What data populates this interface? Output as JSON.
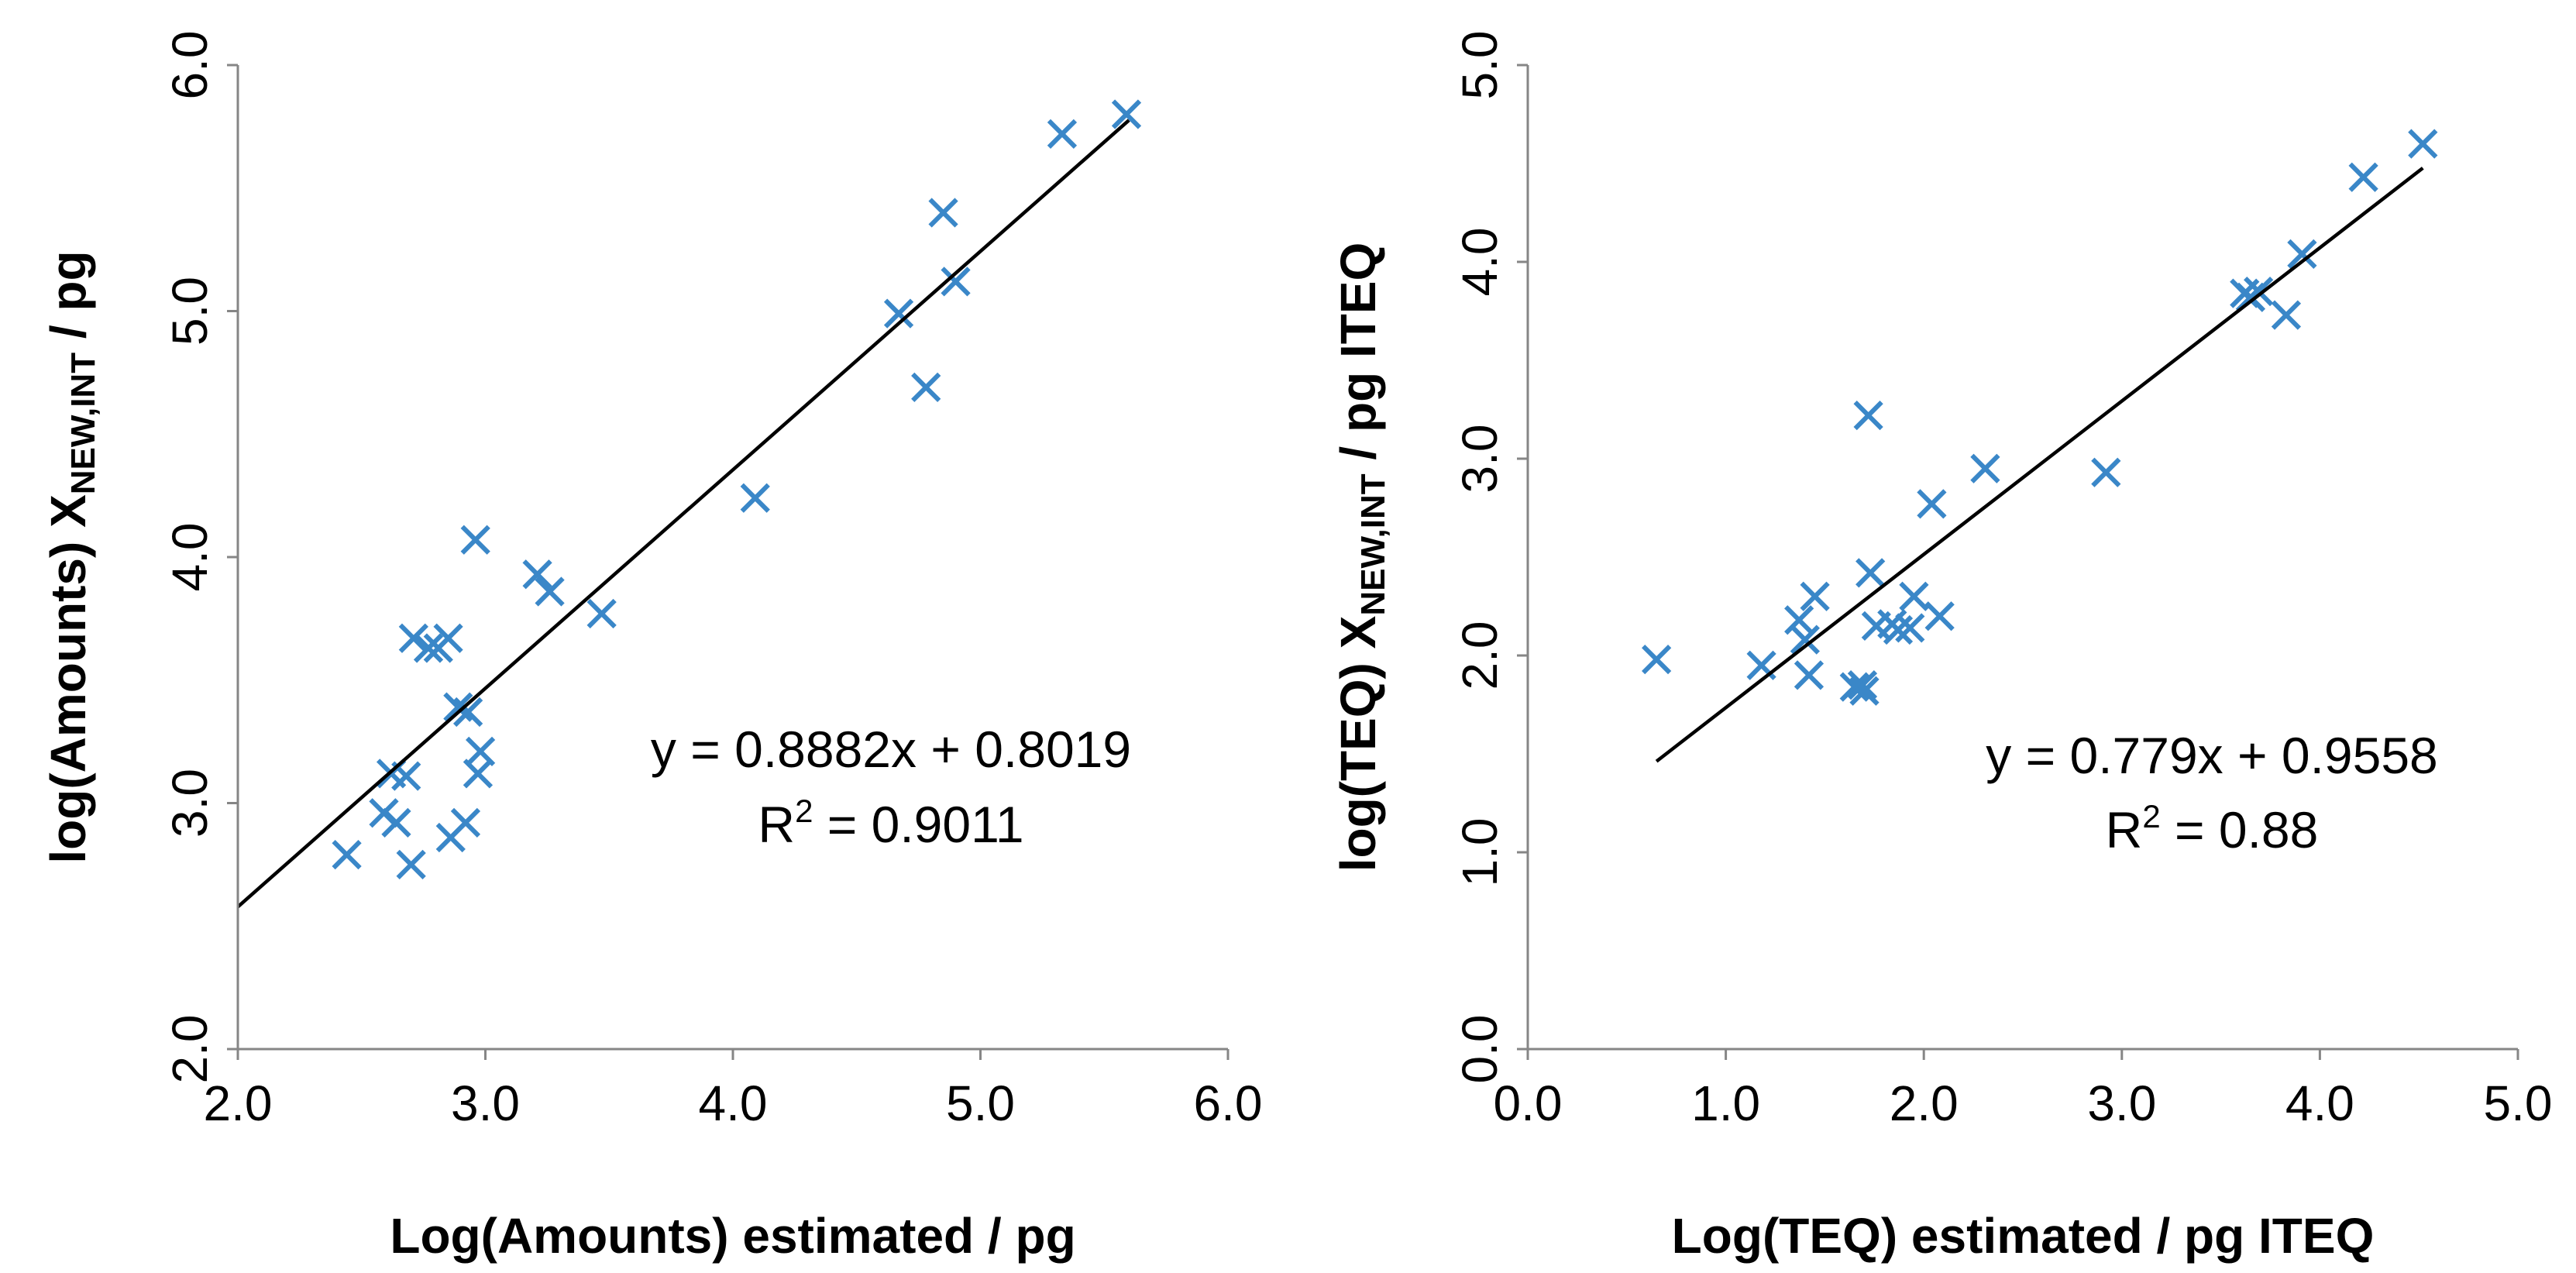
{
  "chart_data": [
    {
      "type": "scatter",
      "title": "",
      "xlabel": "Log(Amounts) estimated / pg",
      "ylabel": {
        "prefix": "log(Amounts) X",
        "subscript": "NEW,INT",
        "suffix": " / pg"
      },
      "xlim": [
        2.0,
        6.0
      ],
      "ylim": [
        2.0,
        6.0
      ],
      "xticks": [
        "2.0",
        "3.0",
        "4.0",
        "5.0",
        "6.0"
      ],
      "yticks": [
        "2.0",
        "3.0",
        "4.0",
        "5.0",
        "6.0"
      ],
      "marker_color": "#3a87c8",
      "points": [
        [
          2.44,
          2.79
        ],
        [
          2.59,
          2.96
        ],
        [
          2.62,
          3.12
        ],
        [
          2.64,
          2.92
        ],
        [
          2.68,
          3.11
        ],
        [
          2.7,
          2.75
        ],
        [
          2.71,
          3.67
        ],
        [
          2.77,
          3.63
        ],
        [
          2.81,
          3.63
        ],
        [
          2.85,
          3.67
        ],
        [
          2.86,
          2.86
        ],
        [
          2.89,
          3.39
        ],
        [
          2.92,
          2.92
        ],
        [
          2.93,
          3.37
        ],
        [
          2.96,
          4.07
        ],
        [
          2.97,
          3.12
        ],
        [
          2.98,
          3.21
        ],
        [
          3.21,
          3.93
        ],
        [
          3.26,
          3.86
        ],
        [
          3.47,
          3.77
        ],
        [
          4.09,
          4.24
        ],
        [
          4.67,
          4.99
        ],
        [
          4.78,
          4.69
        ],
        [
          4.85,
          5.4
        ],
        [
          4.9,
          5.12
        ],
        [
          5.33,
          5.72
        ],
        [
          5.59,
          5.8
        ]
      ],
      "trendline": {
        "slope": 0.8882,
        "intercept": 0.8019,
        "x_range": [
          2.0,
          5.6
        ]
      },
      "equation": "y = 0.8882x + 0.8019",
      "r2_prefix": "R",
      "r2_sup": "2",
      "r2_value": " = 0.9011"
    },
    {
      "type": "scatter",
      "title": "",
      "xlabel": "Log(TEQ) estimated / pg ITEQ",
      "ylabel": {
        "prefix": "log(TEQ) X",
        "subscript": "NEW,INT",
        "suffix": " / pg ITEQ"
      },
      "xlim": [
        0.0,
        5.0
      ],
      "ylim": [
        0.0,
        5.0
      ],
      "xticks": [
        "0.0",
        "1.0",
        "2.0",
        "3.0",
        "4.0",
        "5.0"
      ],
      "yticks": [
        "0.0",
        "1.0",
        "2.0",
        "3.0",
        "4.0",
        "5.0"
      ],
      "marker_color": "#3a87c8",
      "points": [
        [
          0.65,
          1.98
        ],
        [
          1.18,
          1.95
        ],
        [
          1.37,
          2.18
        ],
        [
          1.4,
          2.08
        ],
        [
          1.42,
          1.9
        ],
        [
          1.45,
          2.3
        ],
        [
          1.65,
          1.84
        ],
        [
          1.69,
          1.85
        ],
        [
          1.7,
          1.82
        ],
        [
          1.72,
          3.22
        ],
        [
          1.73,
          2.42
        ],
        [
          1.76,
          2.15
        ],
        [
          1.84,
          2.16
        ],
        [
          1.87,
          2.13
        ],
        [
          1.93,
          2.14
        ],
        [
          1.95,
          2.3
        ],
        [
          2.04,
          2.77
        ],
        [
          2.08,
          2.2
        ],
        [
          2.31,
          2.95
        ],
        [
          2.92,
          2.93
        ],
        [
          3.62,
          3.84
        ],
        [
          3.65,
          3.82
        ],
        [
          3.69,
          3.85
        ],
        [
          3.83,
          3.73
        ],
        [
          3.91,
          4.04
        ],
        [
          4.22,
          4.43
        ],
        [
          4.52,
          4.6
        ]
      ],
      "trendline": {
        "slope": 0.779,
        "intercept": 0.9558,
        "x_range": [
          0.65,
          4.52
        ]
      },
      "equation": "y = 0.779x + 0.9558",
      "r2_prefix": "R",
      "r2_sup": "2",
      "r2_value": " = 0.88"
    }
  ]
}
